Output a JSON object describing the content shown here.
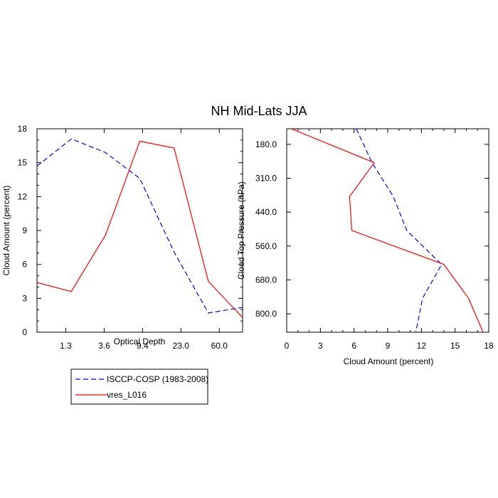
{
  "title": "NH Mid-Lats JJA",
  "colors": {
    "obs": "#0000ff",
    "model": "#ff0000",
    "axis": "#000000"
  },
  "chart_data": [
    {
      "type": "line",
      "xlabel": "Optical Depth",
      "ylabel": "Cloud Amount (percent)",
      "x_tick_labels": [
        "1.3",
        "3.6",
        "9.4",
        "23.0",
        "60.0"
      ],
      "y_tick_labels": [
        "0",
        "3",
        "6",
        "9",
        "12",
        "15",
        "18"
      ],
      "ylim": [
        0,
        18
      ],
      "x_index_range": [
        0,
        6
      ],
      "series": [
        {
          "name": "ISCCP-COSP (1983-2008)",
          "style": "dashed",
          "color": "#0000ff",
          "x": [
            0,
            1,
            2,
            3,
            4,
            5,
            6
          ],
          "y": [
            14.7,
            17.1,
            15.9,
            13.6,
            7.1,
            1.7,
            2.2
          ]
        },
        {
          "name": "vres_L016",
          "style": "solid",
          "color": "#ff0000",
          "x": [
            0,
            1,
            2,
            3,
            4,
            5,
            6
          ],
          "y": [
            4.4,
            3.6,
            8.6,
            16.9,
            16.3,
            4.5,
            1.3
          ]
        }
      ]
    },
    {
      "type": "line",
      "xlabel": "Cloud Amount (percent)",
      "ylabel": "Cloud Top Pressure (hPa)",
      "x_tick_labels": [
        "0",
        "3",
        "6",
        "9",
        "12",
        "15",
        "18"
      ],
      "xlim": [
        0,
        18
      ],
      "y_tick_labels": [
        "180.0",
        "310.0",
        "440.0",
        "560.0",
        "680.0",
        "800.0"
      ],
      "y_index_range": [
        0,
        6
      ],
      "series": [
        {
          "name": "ISCCP-COSP (1983-2008)",
          "style": "dashed",
          "color": "#0000ff",
          "y": [
            0,
            1,
            2,
            3,
            4,
            5,
            6
          ],
          "x": [
            6.2,
            7.6,
            9.5,
            10.7,
            13.8,
            12.1,
            11.5
          ]
        },
        {
          "name": "vres_L016",
          "style": "solid",
          "color": "#ff0000",
          "y": [
            0,
            1,
            2,
            3,
            4,
            5,
            6
          ],
          "x": [
            0.4,
            7.8,
            5.6,
            5.8,
            14.0,
            16.2,
            17.5
          ]
        }
      ]
    }
  ],
  "legend": {
    "entries": [
      {
        "label": "ISCCP-COSP (1983-2008)",
        "style": "dashed",
        "color": "#0000ff"
      },
      {
        "label": "vres_L016",
        "style": "solid",
        "color": "#ff0000"
      }
    ]
  }
}
